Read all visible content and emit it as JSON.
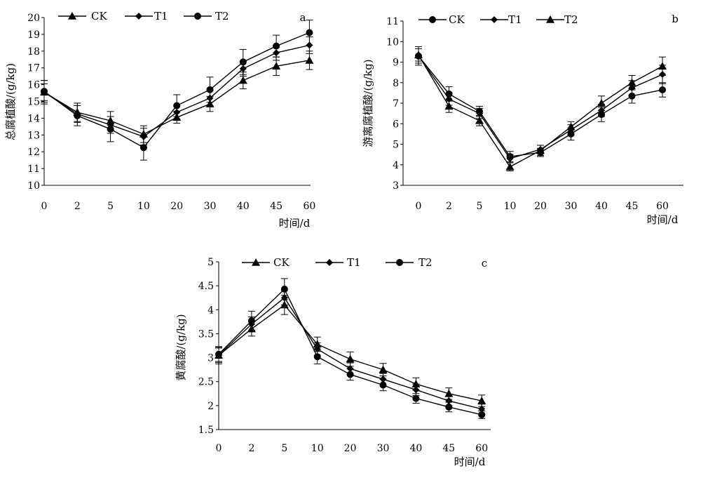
{
  "chart_data": [
    {
      "type": "line",
      "panel": "a",
      "categories": [
        "0",
        "2",
        "5",
        "10",
        "20",
        "30",
        "40",
        "45",
        "60"
      ],
      "xlabel": "时间/d",
      "ylabel": "总腐植酸/(g/kg)",
      "ylim": [
        10,
        20
      ],
      "yticks": [
        "10",
        "11",
        "12",
        "13",
        "14",
        "15",
        "16",
        "17",
        "18",
        "19",
        "20"
      ],
      "legend_position": "top",
      "grid": false,
      "series": [
        {
          "name": "CK",
          "marker": "triangle",
          "values": [
            15.55,
            14.35,
            13.85,
            13.05,
            14.05,
            14.85,
            16.25,
            17.1,
            17.45
          ],
          "errors": [
            0.7,
            0.55,
            0.55,
            0.5,
            0.35,
            0.45,
            0.5,
            0.55,
            0.55
          ]
        },
        {
          "name": "T1",
          "marker": "diamond",
          "values": [
            15.55,
            14.25,
            13.6,
            12.9,
            14.35,
            15.2,
            16.95,
            17.9,
            18.35
          ],
          "errors": [
            0.5,
            0.5,
            0.5,
            0.5,
            0.4,
            0.45,
            0.45,
            0.45,
            0.5
          ]
        },
        {
          "name": "T2",
          "marker": "circle",
          "values": [
            15.6,
            14.15,
            13.35,
            12.25,
            14.75,
            15.7,
            17.35,
            18.3,
            19.1
          ],
          "errors": [
            0.65,
            0.6,
            0.75,
            0.75,
            0.65,
            0.75,
            0.75,
            0.65,
            0.75
          ]
        }
      ]
    },
    {
      "type": "line",
      "panel": "b",
      "categories": [
        "0",
        "2",
        "5",
        "10",
        "20",
        "30",
        "40",
        "45",
        "60"
      ],
      "xlabel": "时间/d",
      "ylabel": "游离腐植酸/(g/kg)",
      "ylim": [
        3,
        11
      ],
      "yticks": [
        "3",
        "4",
        "5",
        "6",
        "7",
        "8",
        "9",
        "10",
        "11"
      ],
      "legend_position": "top",
      "grid": false,
      "series": [
        {
          "name": "CK",
          "marker": "circle",
          "values": [
            9.3,
            7.45,
            6.6,
            4.4,
            4.6,
            5.5,
            6.45,
            7.35,
            7.65
          ],
          "errors": [
            0.45,
            0.35,
            0.25,
            0.25,
            0.2,
            0.3,
            0.35,
            0.35,
            0.35
          ]
        },
        {
          "name": "T1",
          "marker": "diamond",
          "values": [
            9.3,
            7.2,
            6.5,
            4.3,
            4.75,
            5.7,
            6.65,
            7.75,
            8.4
          ],
          "errors": [
            0.35,
            0.3,
            0.25,
            0.2,
            0.2,
            0.25,
            0.3,
            0.35,
            0.45
          ]
        },
        {
          "name": "T2",
          "marker": "triangle",
          "values": [
            9.35,
            6.85,
            6.15,
            3.9,
            4.7,
            5.85,
            7.0,
            8.0,
            8.8
          ],
          "errors": [
            0.3,
            0.3,
            0.25,
            0.2,
            0.25,
            0.25,
            0.35,
            0.35,
            0.45
          ]
        }
      ]
    },
    {
      "type": "line",
      "panel": "c",
      "categories": [
        "0",
        "2",
        "5",
        "10",
        "20",
        "30",
        "40",
        "45",
        "60"
      ],
      "xlabel": "时间/d",
      "ylabel": "黄腐酸/(g/kg)",
      "ylim": [
        1.5,
        5
      ],
      "yticks": [
        "1.5",
        "2",
        "2.5",
        "3",
        "3.5",
        "4",
        "4.5",
        "5"
      ],
      "legend_position": "top",
      "grid": false,
      "series": [
        {
          "name": "CK",
          "marker": "triangle",
          "values": [
            3.05,
            3.6,
            4.1,
            3.28,
            2.97,
            2.75,
            2.45,
            2.25,
            2.1
          ],
          "errors": [
            0.18,
            0.15,
            0.2,
            0.15,
            0.15,
            0.13,
            0.13,
            0.12,
            0.12
          ]
        },
        {
          "name": "T1",
          "marker": "diamond",
          "values": [
            3.05,
            3.7,
            4.25,
            3.18,
            2.77,
            2.55,
            2.33,
            2.1,
            1.93
          ],
          "errors": [
            0.15,
            0.15,
            0.15,
            0.13,
            0.12,
            0.12,
            0.12,
            0.1,
            0.1
          ]
        },
        {
          "name": "T2",
          "marker": "circle",
          "values": [
            3.07,
            3.77,
            4.43,
            3.02,
            2.65,
            2.43,
            2.15,
            1.97,
            1.81
          ],
          "errors": [
            0.15,
            0.2,
            0.22,
            0.15,
            0.12,
            0.12,
            0.1,
            0.1,
            0.08
          ]
        }
      ]
    }
  ]
}
